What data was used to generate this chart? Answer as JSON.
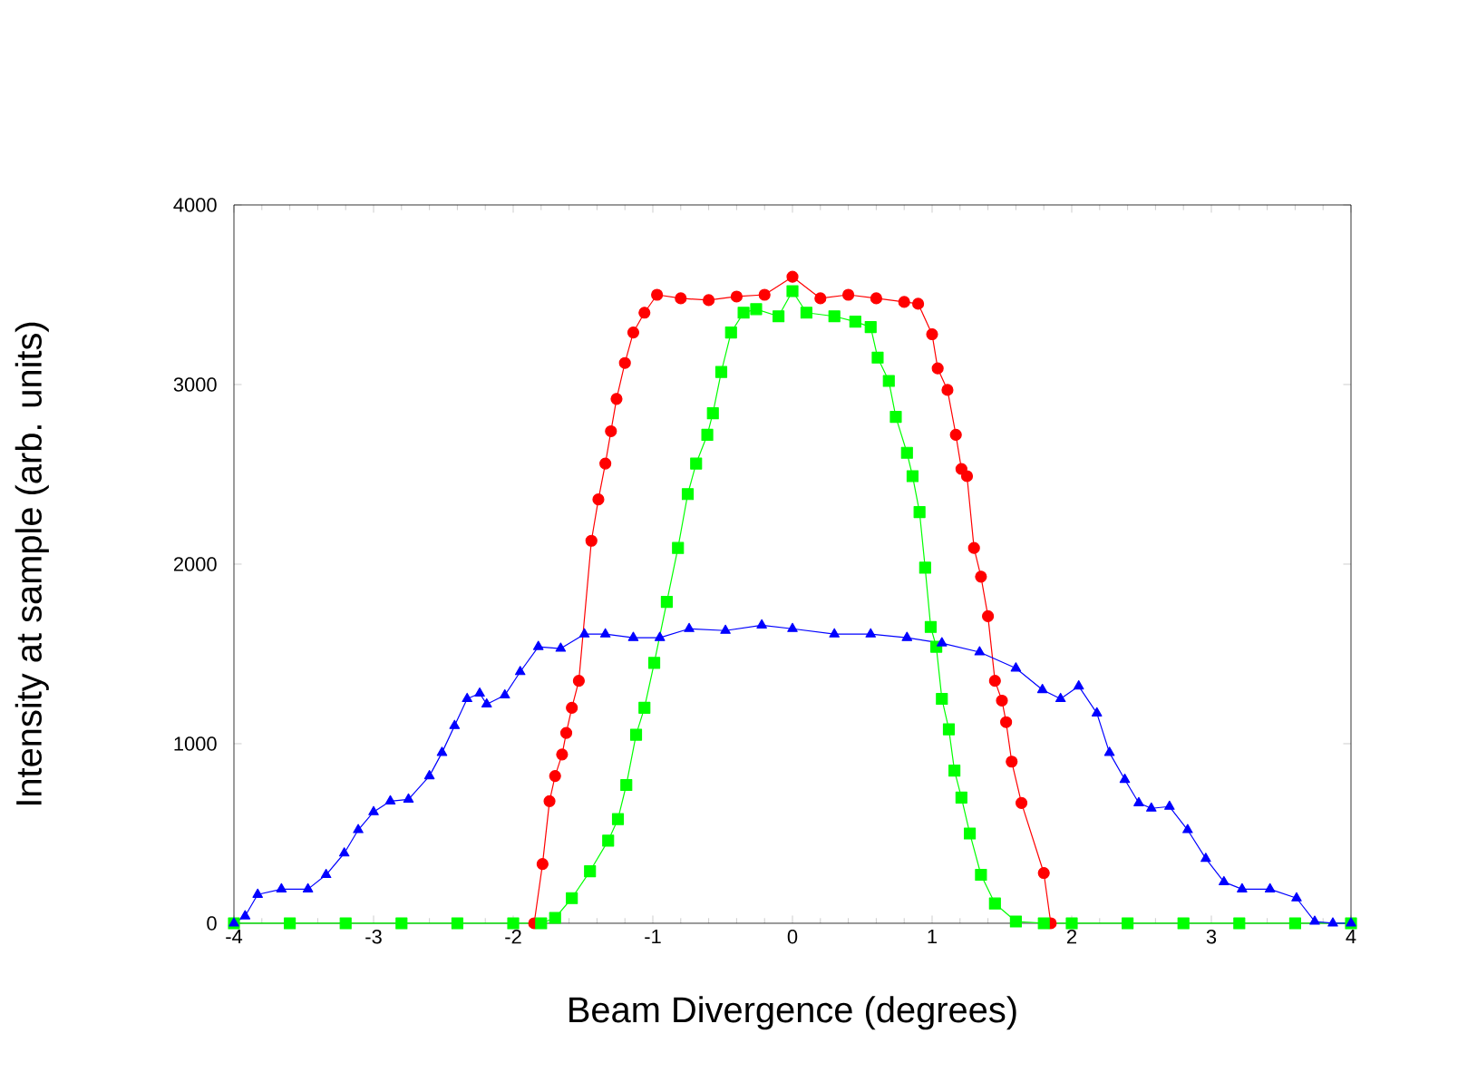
{
  "chart_data": {
    "type": "line",
    "xlabel": "Beam Divergence (degrees)",
    "ylabel": "Intensity at sample (arb. units)",
    "xlim": [
      -4,
      4
    ],
    "ylim": [
      0,
      4000
    ],
    "xticks": [
      -4,
      -3,
      -2,
      -1,
      0,
      1,
      2,
      3,
      4
    ],
    "yticks": [
      0,
      1000,
      2000,
      3000,
      4000
    ],
    "grid": false,
    "series": [
      {
        "color": "#ff0000",
        "marker": "circle",
        "x": [
          -1.85,
          -1.79,
          -1.74,
          -1.7,
          -1.65,
          -1.62,
          -1.58,
          -1.53,
          -1.44,
          -1.39,
          -1.34,
          -1.3,
          -1.26,
          -1.2,
          -1.14,
          -1.06,
          -0.97,
          -0.8,
          -0.6,
          -0.4,
          -0.2,
          0,
          0.2,
          0.4,
          0.6,
          0.8,
          0.9,
          1.0,
          1.04,
          1.11,
          1.17,
          1.21,
          1.25,
          1.3,
          1.35,
          1.4,
          1.45,
          1.5,
          1.53,
          1.57,
          1.64,
          1.8,
          1.85
        ],
        "values": [
          0,
          330,
          680,
          820,
          940,
          1060,
          1200,
          1350,
          2130,
          2360,
          2560,
          2740,
          2920,
          3120,
          3290,
          3400,
          3500,
          3480,
          3470,
          3490,
          3500,
          3600,
          3480,
          3500,
          3480,
          3460,
          3450,
          3280,
          3090,
          2970,
          2720,
          2530,
          2490,
          2090,
          1930,
          1710,
          1350,
          1240,
          1120,
          900,
          670,
          280,
          0
        ]
      },
      {
        "color": "#00ff00",
        "marker": "square",
        "x": [
          -4,
          -3.6,
          -3.2,
          -2.8,
          -2.4,
          -2.0,
          -1.8,
          -1.7,
          -1.58,
          -1.45,
          -1.32,
          -1.25,
          -1.19,
          -1.12,
          -1.06,
          -0.99,
          -0.9,
          -0.82,
          -0.75,
          -0.69,
          -0.61,
          -0.57,
          -0.51,
          -0.44,
          -0.35,
          -0.26,
          -0.1,
          0,
          0.1,
          0.3,
          0.45,
          0.56,
          0.61,
          0.69,
          0.74,
          0.82,
          0.86,
          0.91,
          0.95,
          0.99,
          1.03,
          1.07,
          1.12,
          1.16,
          1.21,
          1.27,
          1.35,
          1.45,
          1.6,
          1.8,
          2.0,
          2.4,
          2.8,
          3.2,
          3.6,
          4
        ],
        "values": [
          0,
          0,
          0,
          0,
          0,
          0,
          0,
          30,
          140,
          290,
          460,
          580,
          770,
          1050,
          1200,
          1450,
          1790,
          2090,
          2390,
          2560,
          2720,
          2840,
          3070,
          3290,
          3400,
          3420,
          3380,
          3520,
          3400,
          3380,
          3350,
          3320,
          3150,
          3020,
          2820,
          2620,
          2490,
          2290,
          1980,
          1650,
          1540,
          1250,
          1080,
          850,
          700,
          500,
          270,
          110,
          10,
          0,
          0,
          0,
          0,
          0,
          0,
          0
        ]
      },
      {
        "color": "#0000ff",
        "marker": "triangle",
        "x": [
          -4,
          -3.92,
          -3.83,
          -3.66,
          -3.47,
          -3.34,
          -3.21,
          -3.11,
          -3.0,
          -2.88,
          -2.75,
          -2.6,
          -2.51,
          -2.42,
          -2.33,
          -2.24,
          -2.19,
          -2.06,
          -1.95,
          -1.82,
          -1.66,
          -1.49,
          -1.34,
          -1.14,
          -0.95,
          -0.74,
          -0.48,
          -0.22,
          0,
          0.3,
          0.56,
          0.82,
          1.07,
          1.34,
          1.6,
          1.79,
          1.92,
          2.05,
          2.18,
          2.27,
          2.38,
          2.48,
          2.57,
          2.7,
          2.83,
          2.96,
          3.09,
          3.22,
          3.42,
          3.61,
          3.74,
          3.87,
          4
        ],
        "values": [
          0,
          40,
          160,
          190,
          190,
          270,
          390,
          520,
          620,
          680,
          690,
          820,
          950,
          1100,
          1250,
          1280,
          1220,
          1270,
          1400,
          1540,
          1530,
          1610,
          1610,
          1590,
          1590,
          1640,
          1630,
          1660,
          1640,
          1610,
          1610,
          1590,
          1560,
          1510,
          1420,
          1300,
          1250,
          1320,
          1170,
          950,
          800,
          670,
          640,
          650,
          520,
          360,
          230,
          190,
          190,
          140,
          10,
          0,
          0
        ]
      }
    ]
  }
}
